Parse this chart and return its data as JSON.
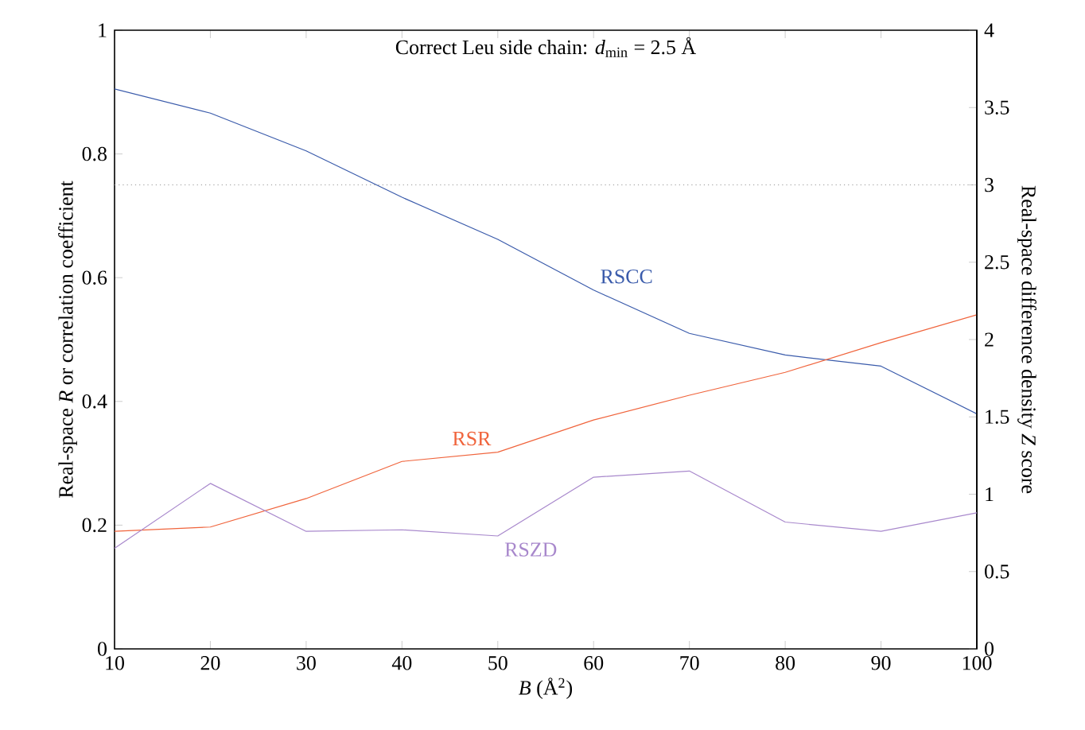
{
  "chart_data": {
    "type": "line",
    "title": "Correct Leu side chain: *d*$_{min}$ = 2.5 Å",
    "xlabel": "*B* (Å$^{2}$)",
    "ylabel": "Real-space *R* or correlation coefficient",
    "y2label": "Real-space difference density *Z* score",
    "x": [
      10,
      20,
      30,
      40,
      50,
      60,
      70,
      80,
      90,
      100
    ],
    "series": [
      {
        "name": "RSCC",
        "color": "#3a5bab",
        "values": [
          0.905,
          0.866,
          0.805,
          0.73,
          0.662,
          0.58,
          0.51,
          0.475,
          0.457,
          0.38
        ]
      },
      {
        "name": "RSR",
        "color": "#f0643c",
        "values": [
          0.19,
          0.197,
          0.243,
          0.303,
          0.318,
          0.37,
          0.41,
          0.447,
          0.495,
          0.54
        ]
      },
      {
        "name": "RSZD",
        "color": "#a888cc",
        "axis": "y2",
        "values": [
          0.65,
          1.07,
          0.76,
          0.77,
          0.73,
          1.11,
          1.15,
          0.82,
          0.76,
          0.88
        ]
      }
    ],
    "xlim": [
      10,
      100
    ],
    "xticks": [
      10,
      20,
      30,
      40,
      50,
      60,
      70,
      80,
      90,
      100
    ],
    "ylim": [
      0,
      1
    ],
    "yticks": [
      0,
      0.2,
      0.4,
      0.6,
      0.8,
      1
    ],
    "y2lim": [
      0,
      4
    ],
    "y2ticks": [
      0,
      0.5,
      1,
      1.5,
      2,
      2.5,
      3,
      3.5,
      4
    ],
    "ref_lines": [
      {
        "axis": "y",
        "value": 0.75,
        "color": "#999999",
        "line_style": "dotted"
      }
    ],
    "grid": false,
    "marker": "none",
    "line_style": "solid"
  }
}
